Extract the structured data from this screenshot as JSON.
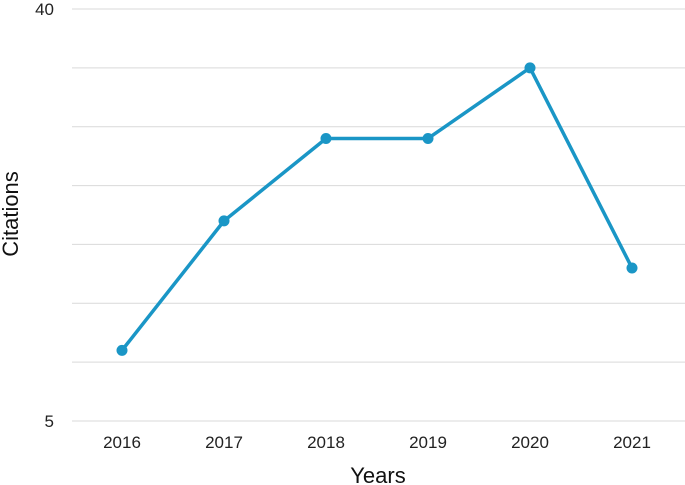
{
  "chart_data": {
    "type": "line",
    "x": [
      "2016",
      "2017",
      "2018",
      "2019",
      "2020",
      "2021"
    ],
    "series": [
      {
        "values": [
          11,
          22,
          29,
          29,
          35,
          18
        ]
      }
    ],
    "xlabel": "Years",
    "ylabel": "Citations",
    "ylim": [
      5,
      40
    ],
    "y_tick_labels": [
      "5",
      "40"
    ],
    "grid": true,
    "color": "#1a96c6"
  }
}
